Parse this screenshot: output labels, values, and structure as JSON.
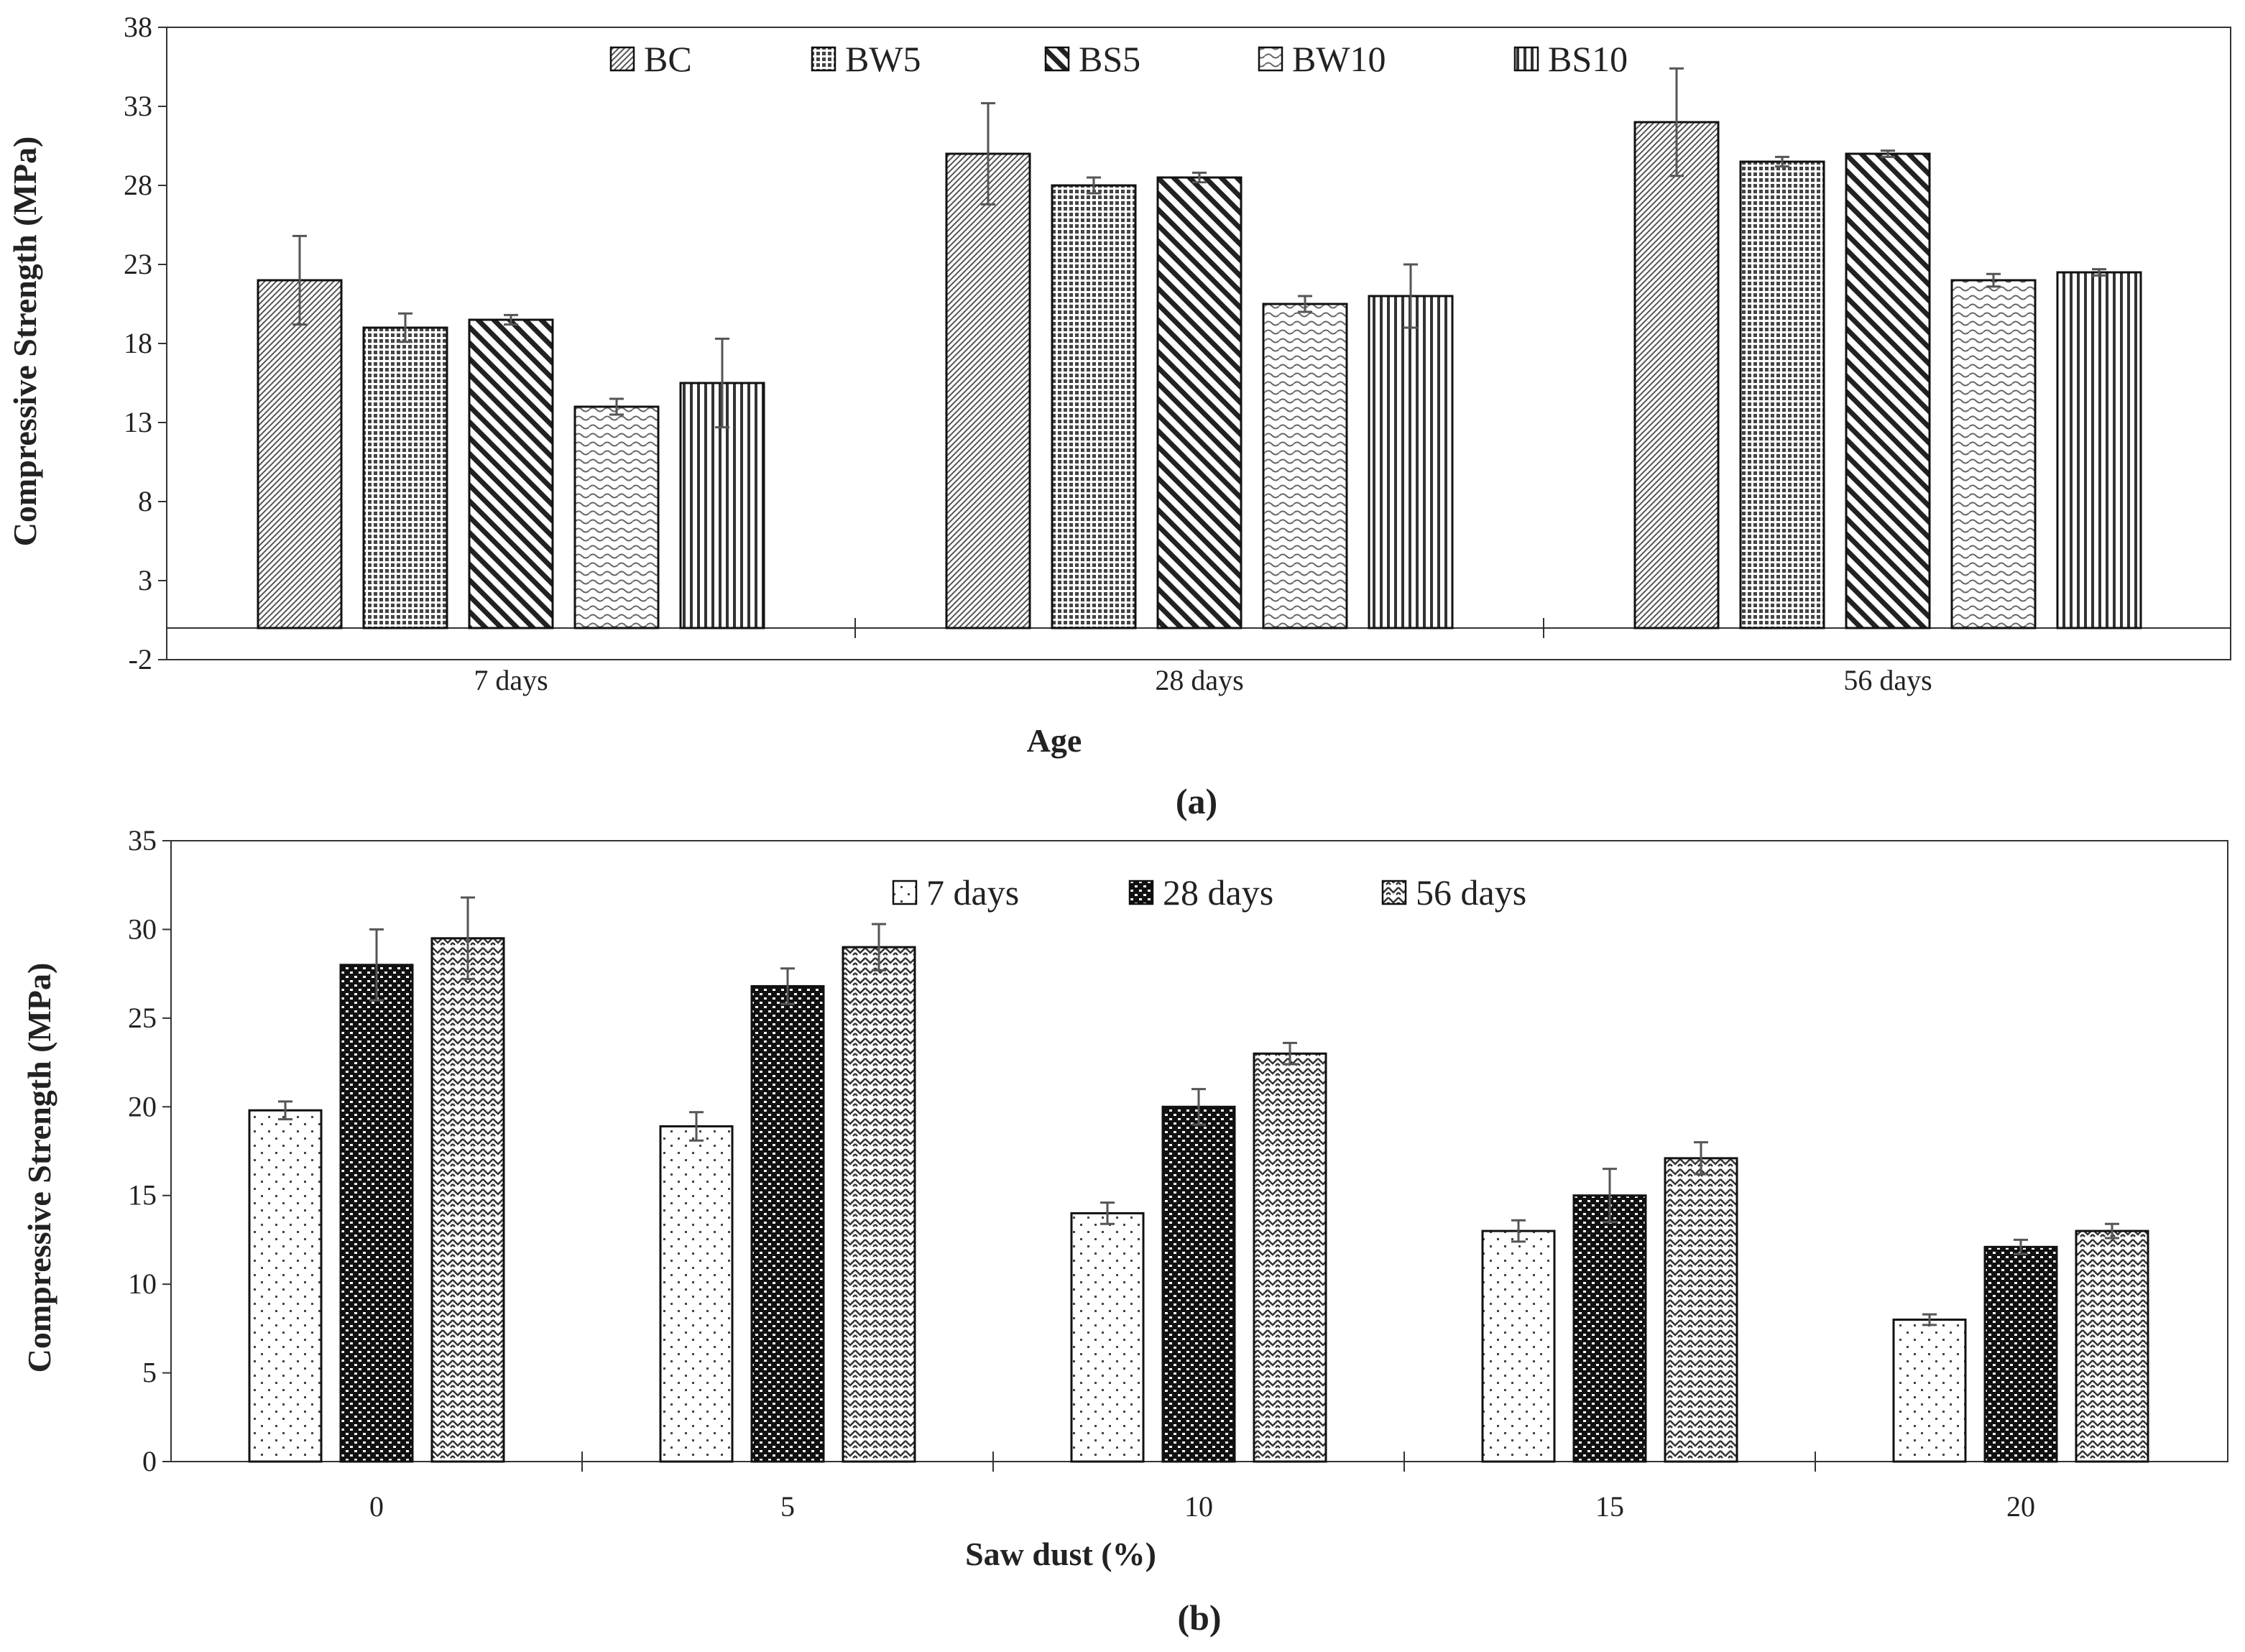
{
  "chart_data": [
    {
      "id": "a",
      "type": "bar",
      "caption": "(a)",
      "xlabel": "Age",
      "ylabel": "Compressive Strength (MPa)",
      "categories": [
        "7 days",
        "28 days",
        "56 days"
      ],
      "ylim": [
        -2,
        38
      ],
      "yticks": [
        "-2",
        "3",
        "8",
        "13",
        "18",
        "23",
        "28",
        "33",
        "38"
      ],
      "legend_position": "top",
      "series": [
        {
          "name": "BC",
          "pattern": "diag-fine",
          "values": [
            22.0,
            30.0,
            32.0
          ],
          "errors": [
            2.8,
            3.2,
            3.4
          ]
        },
        {
          "name": "BW5",
          "pattern": "grid-dense",
          "values": [
            19.0,
            28.0,
            29.5
          ],
          "errors": [
            0.9,
            0.5,
            0.3
          ]
        },
        {
          "name": "BS5",
          "pattern": "diag-wide",
          "values": [
            19.5,
            28.5,
            30.0
          ],
          "errors": [
            0.3,
            0.3,
            0.2
          ]
        },
        {
          "name": "BW10",
          "pattern": "wave",
          "values": [
            14.0,
            20.5,
            22.0
          ],
          "errors": [
            0.5,
            0.5,
            0.4
          ]
        },
        {
          "name": "BS10",
          "pattern": "vertical",
          "values": [
            15.5,
            21.0,
            22.5
          ],
          "errors": [
            2.8,
            2.0,
            0.2
          ]
        }
      ]
    },
    {
      "id": "b",
      "type": "bar",
      "caption": "(b)",
      "xlabel": "Saw dust (%)",
      "ylabel": "Compressive Strength (MPa)",
      "categories": [
        "0",
        "5",
        "10",
        "15",
        "20"
      ],
      "ylim": [
        0,
        35
      ],
      "yticks": [
        "0",
        "5",
        "10",
        "15",
        "20",
        "25",
        "30",
        "35"
      ],
      "legend_position": "top",
      "series": [
        {
          "name": "7 days",
          "pattern": "dots-sparse",
          "values": [
            19.8,
            18.9,
            14.0,
            13.0,
            8.0
          ],
          "errors": [
            0.5,
            0.8,
            0.6,
            0.6,
            0.3
          ]
        },
        {
          "name": "28 days",
          "pattern": "dots-dense",
          "values": [
            28.0,
            26.8,
            20.0,
            15.0,
            12.1
          ],
          "errors": [
            2.0,
            1.0,
            1.0,
            1.5,
            0.4
          ]
        },
        {
          "name": "56 days",
          "pattern": "zigzag",
          "values": [
            29.5,
            29.0,
            23.0,
            17.1,
            13.0
          ],
          "errors": [
            2.3,
            1.3,
            0.6,
            0.9,
            0.4
          ]
        }
      ]
    }
  ]
}
